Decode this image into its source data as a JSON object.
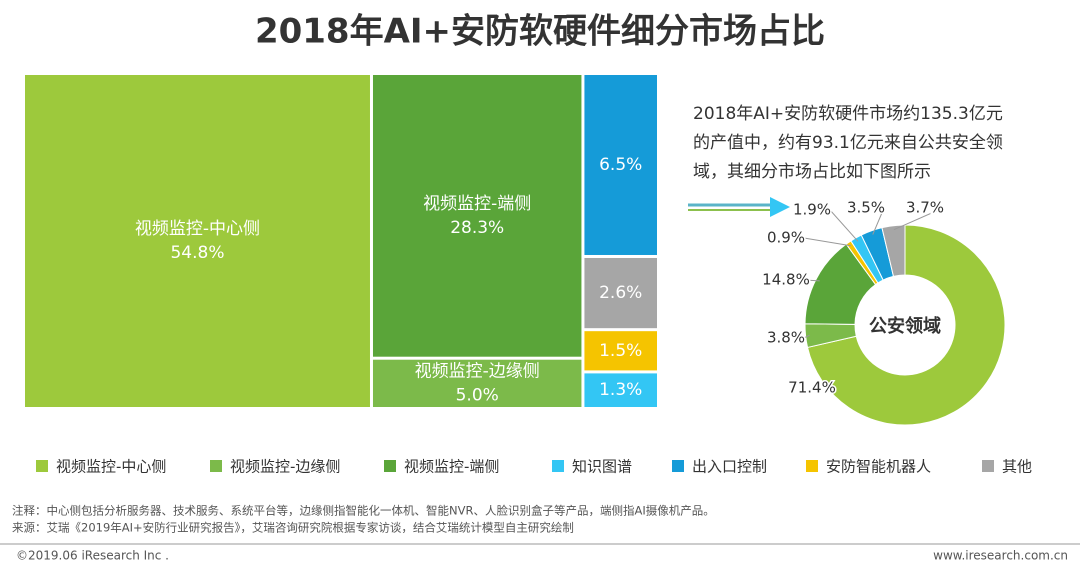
{
  "title": "2018年AI+安防软硬件细分市场占比",
  "annotation": [
    "2018年AI+安防软硬件市场约135.3亿元",
    "的产值中，约有93.1亿元来自公共安全领",
    "域，其细分市场占比如下图所示"
  ],
  "legend": [
    {
      "name": "视频监控-中心侧",
      "color": "#9dc93c"
    },
    {
      "name": "视频监控-边缘侧",
      "color": "#7cba4a"
    },
    {
      "name": "视频监控-端侧",
      "color": "#5aa539"
    },
    {
      "name": "知识图谱",
      "color": "#33c6f4"
    },
    {
      "name": "出入口控制",
      "color": "#159bd8"
    },
    {
      "name": "安防智能机器人",
      "color": "#f5c400"
    },
    {
      "name": "其他",
      "color": "#a6a6a6"
    }
  ],
  "note": "注释：中心侧包括分析服务器、技术服务、系统平台等，边缘侧指智能化一体机、智能NVR、人脸识别盒子等产品，端侧指AI摄像机产品。",
  "source": "来源：艾瑞《2019年AI+安防行业研究报告》，艾瑞咨询研究院根据专家访谈，结合艾瑞统计模型自主研究绘制",
  "copyright": "©2019.06 iResearch Inc .",
  "website": "www.iresearch.com.cn",
  "chart_data": [
    {
      "type": "treemap",
      "categories": [
        "视频监控-中心侧",
        "视频监控-端侧",
        "视频监控-边缘侧",
        null,
        null,
        null,
        null
      ],
      "values": [
        54.8,
        28.3,
        5.0,
        6.5,
        2.6,
        1.5,
        1.3
      ],
      "value_labels": [
        "54.8%",
        "28.3%",
        "5.0%",
        "6.5%",
        "2.6%",
        "1.5%",
        "1.3%"
      ],
      "colors": [
        "#9dc93c",
        "#5aa539",
        "#7cba4a",
        "#159bd8",
        "#a6a6a6",
        "#f5c400",
        "#33c6f4"
      ]
    },
    {
      "type": "donut",
      "title": "公安领域",
      "values": [
        71.4,
        3.8,
        14.8,
        0.9,
        1.9,
        3.5,
        3.7
      ],
      "value_labels": [
        "71.4%",
        "3.8%",
        "14.8%",
        "0.9%",
        "1.9%",
        "3.5%",
        "3.7%"
      ],
      "colors": [
        "#9dc93c",
        "#7cba4a",
        "#5aa539",
        "#f5c400",
        "#33c6f4",
        "#159bd8",
        "#a6a6a6"
      ]
    }
  ]
}
